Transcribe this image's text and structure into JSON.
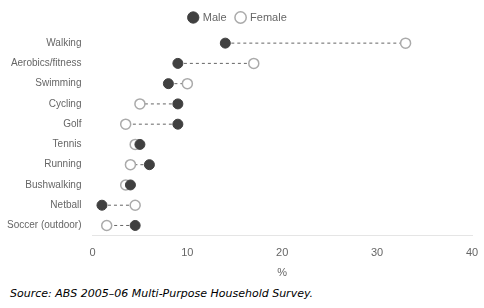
{
  "chart_data": {
    "type": "dumbbell",
    "categories": [
      "Walking",
      "Aerobics/fitness",
      "Swimming",
      "Cycling",
      "Golf",
      "Tennis",
      "Running",
      "Bushwalking",
      "Netball",
      "Soccer (outdoor)"
    ],
    "series": [
      {
        "name": "Male",
        "color": "#404040",
        "marker": "filled_circle",
        "values": [
          14,
          9,
          8,
          9,
          9,
          5,
          6,
          4,
          1,
          4.5
        ]
      },
      {
        "name": "Female",
        "color": "#aaaaaa",
        "marker": "open_circle",
        "values": [
          33,
          17,
          10,
          5,
          3.5,
          4.5,
          4,
          3.5,
          4.5,
          1.5
        ]
      }
    ],
    "x_label": "%",
    "xlim": [
      0,
      40
    ],
    "xticks": [
      0,
      10,
      20,
      30,
      40
    ],
    "line_style": "dashed",
    "grid": false,
    "legend": "top",
    "annotation": "Source: ABS 2005–06 Multi-Purpose Household Survey."
  }
}
